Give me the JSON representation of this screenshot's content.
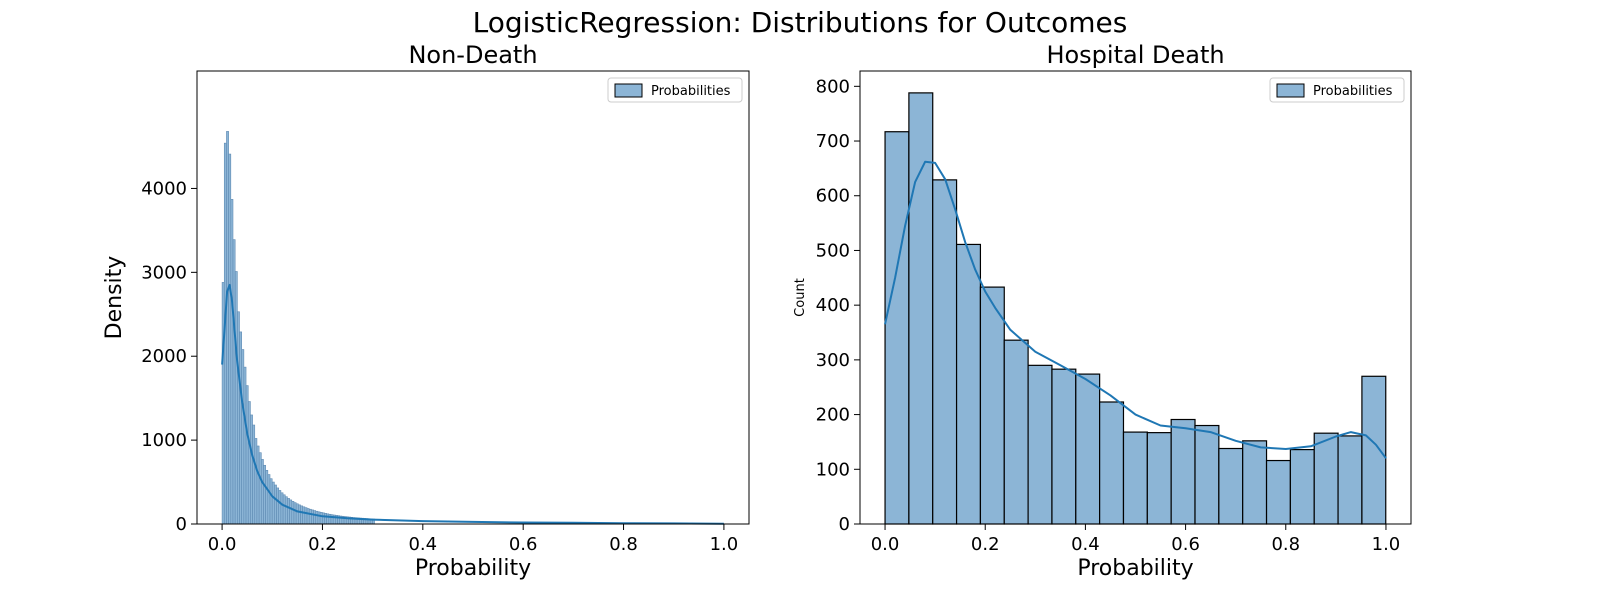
{
  "figure": {
    "suptitle": "LogisticRegression: Distributions for Outcomes"
  },
  "colors": {
    "bar_fill": "#8cb5d6",
    "bar_edge": "#000000",
    "bar_edge_dense": "#5f8bb3",
    "kde_line": "#1f77b4"
  },
  "chart_data": [
    {
      "type": "bar",
      "title": "Non-Death",
      "xlabel": "Probability",
      "ylabel": "Density",
      "xlim": [
        -0.05,
        1.05
      ],
      "ylim": [
        0,
        5400
      ],
      "xticks": [
        0.0,
        0.2,
        0.4,
        0.6,
        0.8,
        1.0
      ],
      "xtick_labels": [
        "0.0",
        "0.2",
        "0.4",
        "0.6",
        "0.8",
        "1.0"
      ],
      "yticks": [
        0,
        1000,
        2000,
        3000,
        4000
      ],
      "ytick_labels": [
        "0",
        "1000",
        "2000",
        "3000",
        "4000"
      ],
      "legend": {
        "entries": [
          "Probabilities"
        ],
        "placement": "top-right"
      },
      "bin_width": 0.00434,
      "bin_start": 0.0,
      "values": [
        2880,
        4540,
        4680,
        4410,
        3870,
        3390,
        3010,
        2530,
        2290,
        2080,
        1870,
        1650,
        1460,
        1300,
        1180,
        1020,
        930,
        850,
        770,
        700,
        640,
        590,
        540,
        500,
        465,
        430,
        400,
        372,
        348,
        325,
        305,
        287,
        270,
        255,
        241,
        228,
        216,
        205,
        195,
        185,
        176,
        168,
        160,
        152,
        145,
        139,
        133,
        127,
        121,
        116,
        111,
        107,
        103,
        99,
        95,
        92,
        89,
        86,
        83,
        80,
        77,
        75,
        73,
        71,
        69,
        67,
        65,
        63,
        61,
        59
      ],
      "kde": {
        "name": "KDE",
        "x": [
          0.0,
          0.005,
          0.01,
          0.015,
          0.02,
          0.025,
          0.03,
          0.04,
          0.05,
          0.06,
          0.07,
          0.08,
          0.1,
          0.12,
          0.15,
          0.2,
          0.25,
          0.3,
          0.4,
          0.5,
          0.6,
          0.7,
          0.8,
          0.9,
          1.0
        ],
        "y": [
          1900,
          2330,
          2770,
          2850,
          2650,
          2300,
          1950,
          1450,
          1080,
          820,
          630,
          500,
          330,
          230,
          150,
          92,
          68,
          52,
          35,
          25,
          18,
          14,
          10,
          7,
          4
        ]
      }
    },
    {
      "type": "bar",
      "title": "Hospital Death",
      "xlabel": "Probability",
      "ylabel": "Count",
      "xlim": [
        -0.05,
        1.05
      ],
      "ylim": [
        0,
        828
      ],
      "xticks": [
        0.0,
        0.2,
        0.4,
        0.6,
        0.8,
        1.0
      ],
      "xtick_labels": [
        "0.0",
        "0.2",
        "0.4",
        "0.6",
        "0.8",
        "1.0"
      ],
      "yticks": [
        0,
        100,
        200,
        300,
        400,
        500,
        600,
        700,
        800
      ],
      "ytick_labels": [
        "0",
        "100",
        "200",
        "300",
        "400",
        "500",
        "600",
        "700",
        "800"
      ],
      "legend": {
        "entries": [
          "Probabilities"
        ],
        "placement": "top-right"
      },
      "bin_width": 0.0476,
      "bin_start": 0.0,
      "values": [
        717,
        788,
        629,
        511,
        433,
        336,
        290,
        283,
        274,
        223,
        168,
        167,
        191,
        180,
        138,
        152,
        116,
        136,
        166,
        161,
        270
      ],
      "kde": {
        "name": "KDE",
        "x": [
          0.0,
          0.02,
          0.04,
          0.06,
          0.08,
          0.1,
          0.12,
          0.14,
          0.16,
          0.18,
          0.2,
          0.22,
          0.25,
          0.3,
          0.35,
          0.4,
          0.45,
          0.5,
          0.55,
          0.6,
          0.65,
          0.7,
          0.75,
          0.8,
          0.85,
          0.9,
          0.93,
          0.96,
          0.98,
          1.0
        ],
        "y": [
          365,
          450,
          545,
          625,
          662,
          660,
          630,
          575,
          515,
          465,
          425,
          395,
          355,
          315,
          290,
          265,
          235,
          200,
          180,
          175,
          168,
          152,
          140,
          137,
          142,
          160,
          168,
          162,
          145,
          120
        ]
      }
    }
  ]
}
